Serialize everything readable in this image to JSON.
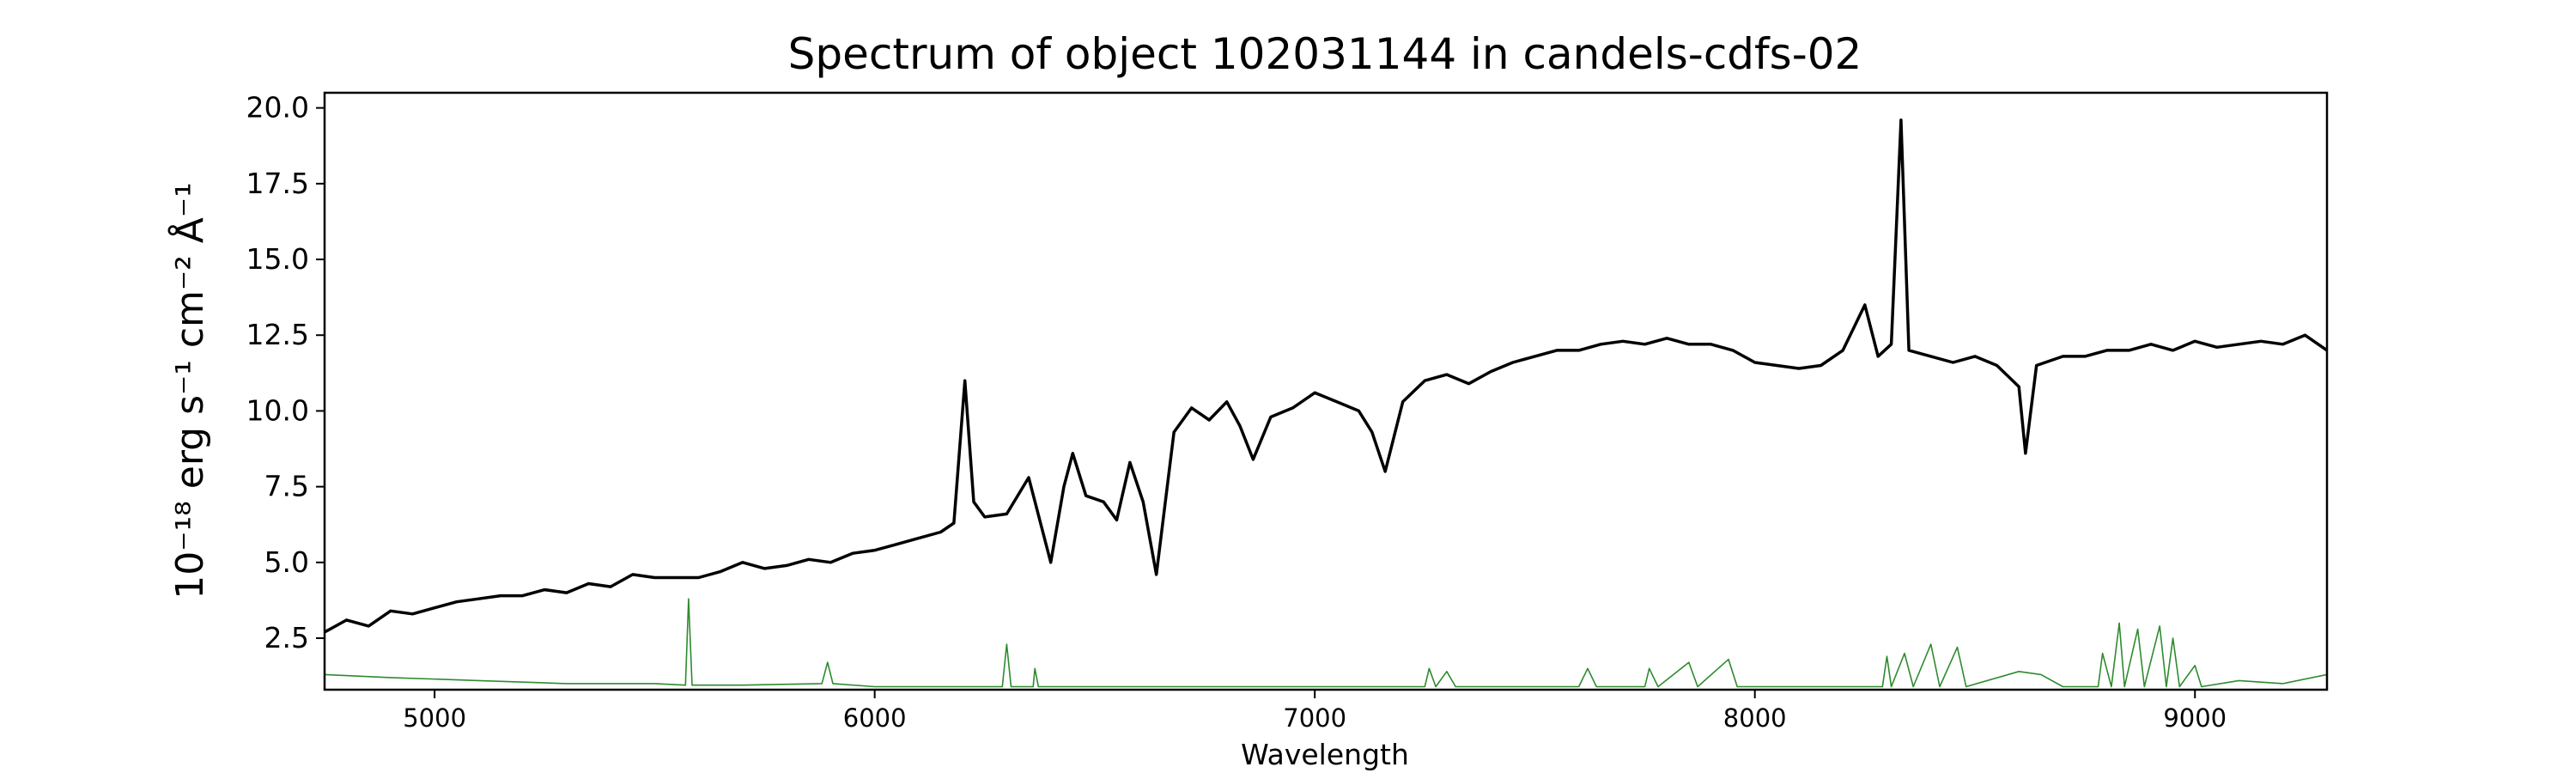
{
  "chart_data": {
    "type": "line",
    "title": "Spectrum of object 102031144 in candels-cdfs-02",
    "xlabel": "Wavelength",
    "ylabel": "10⁻¹⁸ erg s⁻¹ cm⁻² Å⁻¹",
    "xlim": [
      4750,
      9300
    ],
    "ylim": [
      0.8,
      20.5
    ],
    "x_ticks": [
      5000,
      6000,
      7000,
      8000,
      9000
    ],
    "y_ticks": [
      2.5,
      5.0,
      7.5,
      10.0,
      12.5,
      15.0,
      17.5,
      20.0
    ],
    "grid": false,
    "series": [
      {
        "color": "#000000",
        "points": [
          [
            4750,
            2.7
          ],
          [
            4800,
            3.1
          ],
          [
            4850,
            2.9
          ],
          [
            4900,
            3.4
          ],
          [
            4950,
            3.3
          ],
          [
            5000,
            3.5
          ],
          [
            5050,
            3.7
          ],
          [
            5100,
            3.8
          ],
          [
            5150,
            3.9
          ],
          [
            5200,
            3.9
          ],
          [
            5250,
            4.1
          ],
          [
            5300,
            4.0
          ],
          [
            5350,
            4.3
          ],
          [
            5400,
            4.2
          ],
          [
            5450,
            4.6
          ],
          [
            5500,
            4.5
          ],
          [
            5550,
            4.5
          ],
          [
            5600,
            4.5
          ],
          [
            5650,
            4.7
          ],
          [
            5700,
            5.0
          ],
          [
            5750,
            4.8
          ],
          [
            5800,
            4.9
          ],
          [
            5850,
            5.1
          ],
          [
            5900,
            5.0
          ],
          [
            5950,
            5.3
          ],
          [
            6000,
            5.4
          ],
          [
            6050,
            5.6
          ],
          [
            6100,
            5.8
          ],
          [
            6150,
            6.0
          ],
          [
            6180,
            6.3
          ],
          [
            6205,
            11.0
          ],
          [
            6225,
            7.0
          ],
          [
            6250,
            6.5
          ],
          [
            6300,
            6.6
          ],
          [
            6350,
            7.8
          ],
          [
            6400,
            5.0
          ],
          [
            6430,
            7.5
          ],
          [
            6450,
            8.6
          ],
          [
            6480,
            7.2
          ],
          [
            6520,
            7.0
          ],
          [
            6550,
            6.4
          ],
          [
            6580,
            8.3
          ],
          [
            6610,
            7.0
          ],
          [
            6640,
            4.6
          ],
          [
            6680,
            9.3
          ],
          [
            6720,
            10.1
          ],
          [
            6760,
            9.7
          ],
          [
            6800,
            10.3
          ],
          [
            6830,
            9.5
          ],
          [
            6860,
            8.4
          ],
          [
            6900,
            9.8
          ],
          [
            6950,
            10.1
          ],
          [
            7000,
            10.6
          ],
          [
            7050,
            10.3
          ],
          [
            7100,
            10.0
          ],
          [
            7130,
            9.3
          ],
          [
            7160,
            8.0
          ],
          [
            7200,
            10.3
          ],
          [
            7250,
            11.0
          ],
          [
            7300,
            11.2
          ],
          [
            7350,
            10.9
          ],
          [
            7400,
            11.3
          ],
          [
            7450,
            11.6
          ],
          [
            7500,
            11.8
          ],
          [
            7550,
            12.0
          ],
          [
            7600,
            12.0
          ],
          [
            7650,
            12.2
          ],
          [
            7700,
            12.3
          ],
          [
            7750,
            12.2
          ],
          [
            7800,
            12.4
          ],
          [
            7850,
            12.2
          ],
          [
            7900,
            12.2
          ],
          [
            7950,
            12.0
          ],
          [
            8000,
            11.6
          ],
          [
            8050,
            11.5
          ],
          [
            8100,
            11.4
          ],
          [
            8150,
            11.5
          ],
          [
            8200,
            12.0
          ],
          [
            8250,
            13.5
          ],
          [
            8280,
            11.8
          ],
          [
            8310,
            12.2
          ],
          [
            8332,
            19.6
          ],
          [
            8350,
            12.0
          ],
          [
            8400,
            11.8
          ],
          [
            8450,
            11.6
          ],
          [
            8500,
            11.8
          ],
          [
            8550,
            11.5
          ],
          [
            8600,
            10.8
          ],
          [
            8615,
            8.6
          ],
          [
            8640,
            11.5
          ],
          [
            8700,
            11.8
          ],
          [
            8750,
            11.8
          ],
          [
            8800,
            12.0
          ],
          [
            8850,
            12.0
          ],
          [
            8900,
            12.2
          ],
          [
            8950,
            12.0
          ],
          [
            9000,
            12.3
          ],
          [
            9050,
            12.1
          ],
          [
            9100,
            12.2
          ],
          [
            9150,
            12.3
          ],
          [
            9200,
            12.2
          ],
          [
            9250,
            12.5
          ],
          [
            9300,
            12.0
          ]
        ]
      },
      {
        "color": "#2e8b2e",
        "points": [
          [
            4750,
            1.3
          ],
          [
            4900,
            1.2
          ],
          [
            5100,
            1.1
          ],
          [
            5300,
            1.0
          ],
          [
            5500,
            1.0
          ],
          [
            5570,
            0.95
          ],
          [
            5577,
            3.8
          ],
          [
            5585,
            0.95
          ],
          [
            5700,
            0.95
          ],
          [
            5880,
            1.0
          ],
          [
            5893,
            1.7
          ],
          [
            5905,
            1.0
          ],
          [
            6000,
            0.9
          ],
          [
            6290,
            0.9
          ],
          [
            6300,
            2.3
          ],
          [
            6310,
            0.9
          ],
          [
            6360,
            0.9
          ],
          [
            6364,
            1.5
          ],
          [
            6372,
            0.9
          ],
          [
            7250,
            0.9
          ],
          [
            7260,
            1.5
          ],
          [
            7275,
            0.9
          ],
          [
            7300,
            1.4
          ],
          [
            7320,
            0.9
          ],
          [
            7600,
            0.9
          ],
          [
            7620,
            1.5
          ],
          [
            7640,
            0.9
          ],
          [
            7750,
            0.9
          ],
          [
            7760,
            1.5
          ],
          [
            7780,
            0.9
          ],
          [
            7850,
            1.7
          ],
          [
            7870,
            0.9
          ],
          [
            7940,
            1.8
          ],
          [
            7960,
            0.9
          ],
          [
            8290,
            0.9
          ],
          [
            8300,
            1.9
          ],
          [
            8310,
            0.9
          ],
          [
            8340,
            2.0
          ],
          [
            8360,
            0.9
          ],
          [
            8400,
            2.3
          ],
          [
            8420,
            0.9
          ],
          [
            8460,
            2.2
          ],
          [
            8480,
            0.9
          ],
          [
            8600,
            1.4
          ],
          [
            8650,
            1.3
          ],
          [
            8700,
            0.9
          ],
          [
            8780,
            0.9
          ],
          [
            8790,
            2.0
          ],
          [
            8810,
            0.9
          ],
          [
            8828,
            3.0
          ],
          [
            8840,
            0.9
          ],
          [
            8870,
            2.8
          ],
          [
            8885,
            0.9
          ],
          [
            8920,
            2.9
          ],
          [
            8935,
            0.9
          ],
          [
            8950,
            2.5
          ],
          [
            8965,
            0.9
          ],
          [
            9000,
            1.6
          ],
          [
            9015,
            0.9
          ],
          [
            9100,
            1.1
          ],
          [
            9200,
            1.0
          ],
          [
            9300,
            1.3
          ]
        ]
      }
    ]
  }
}
